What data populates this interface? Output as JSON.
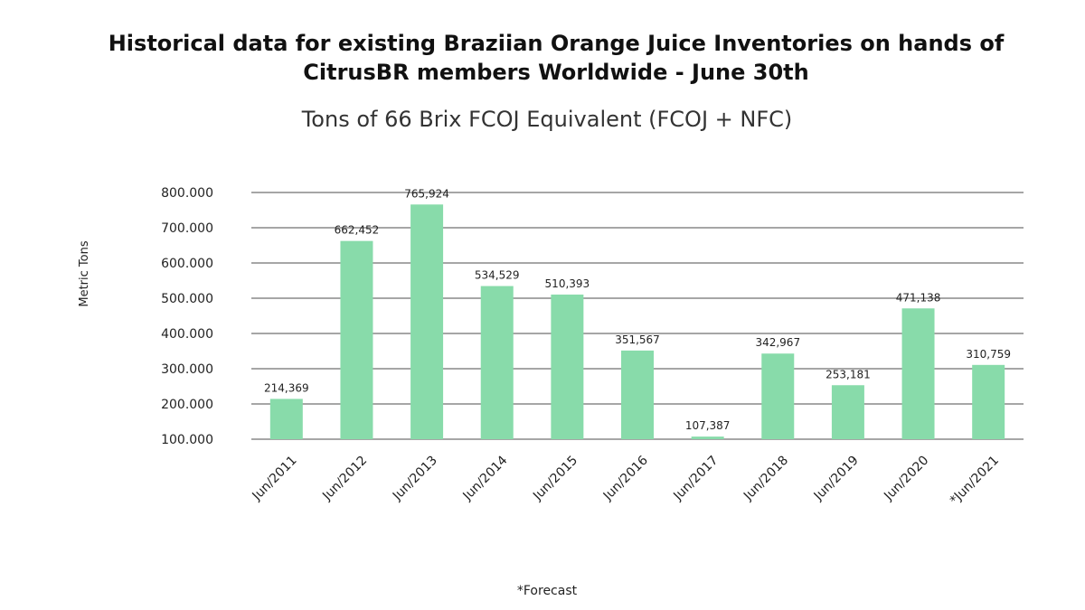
{
  "chart_data": {
    "type": "bar",
    "title": "Historical data for existing Braziian Orange Juice Inventories on hands of CitrusBR members Worldwide - June 30th",
    "subtitle": "Tons of 66 Brix FCOJ Equivalent (FCOJ + NFC)",
    "y_label": "Metric Tons",
    "note": "*Forecast",
    "categories": [
      "Jun/2011",
      "Jun/2012",
      "Jun/2013",
      "Jun/2014",
      "Jun/2015",
      "Jun/2016",
      "Jun/2017",
      "Jun/2018",
      "Jun/2019",
      "Jun/2020",
      "*Jun/2021"
    ],
    "values": [
      214369,
      662452,
      765924,
      534529,
      510393,
      351567,
      107387,
      342967,
      253181,
      471138,
      310759
    ],
    "value_labels": [
      "214,369",
      "662,452",
      "765,924",
      "534,529",
      "510,393",
      "351,567",
      "107,387",
      "342,967",
      "253,181",
      "471,138",
      "310,759"
    ],
    "color": "#88dbaa",
    "ylim": [
      100000,
      800000
    ],
    "yticks": [
      {
        "value": 100000,
        "label": "100.000"
      },
      {
        "value": 200000,
        "label": "200.000"
      },
      {
        "value": 300000,
        "label": "300.000"
      },
      {
        "value": 400000,
        "label": "400.000"
      },
      {
        "value": 500000,
        "label": "500.000"
      },
      {
        "value": 600000,
        "label": "600.000"
      },
      {
        "value": 700000,
        "label": "700.000"
      },
      {
        "value": 800000,
        "label": "800.000"
      }
    ],
    "grid": true
  }
}
